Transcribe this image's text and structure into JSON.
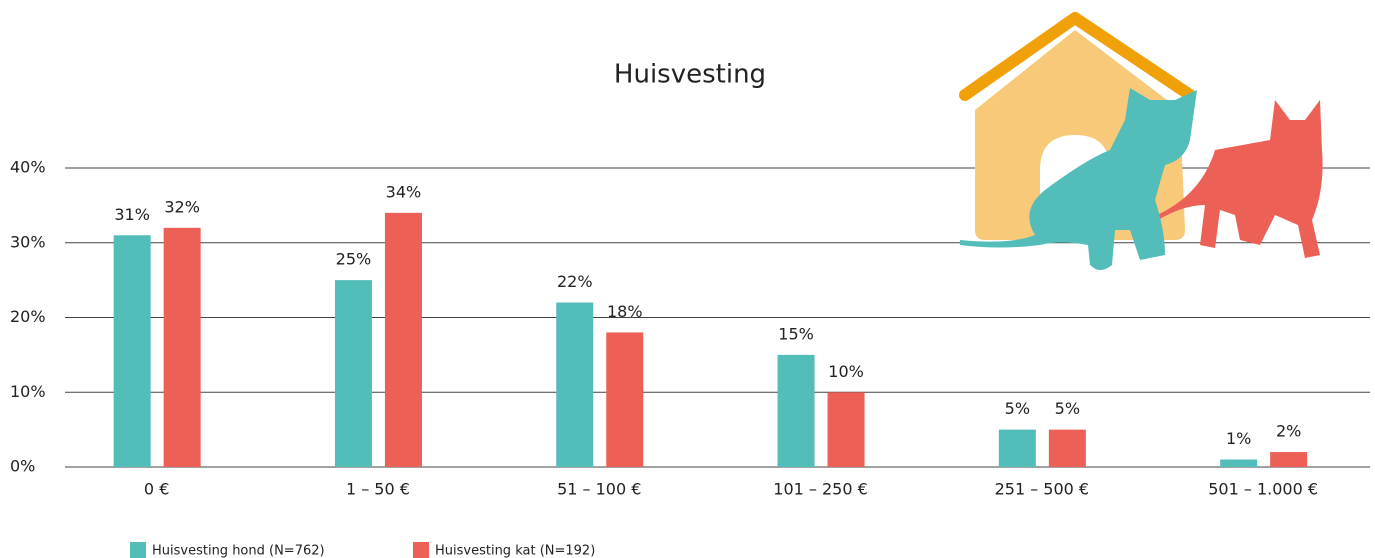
{
  "chart_data": {
    "type": "bar",
    "title": "Huisvesting",
    "categories": [
      "0 €",
      "1 – 50 €",
      "51 – 100 €",
      "101 – 250 €",
      "251 – 500 €",
      "501 – 1.000 €"
    ],
    "series": [
      {
        "name": "Huisvesting hond (N=762)",
        "color": "#52bdb9",
        "values": [
          31,
          25,
          22,
          15,
          5,
          1
        ],
        "value_labels": [
          "31%",
          "25%",
          "22%",
          "15%",
          "5%",
          "1%"
        ]
      },
      {
        "name": "Huisvesting kat (N=192)",
        "color": "#ec6055",
        "values": [
          32,
          34,
          18,
          10,
          5,
          2
        ],
        "value_labels": [
          "32%",
          "34%",
          "18%",
          "10%",
          "5%",
          "2%"
        ]
      }
    ],
    "ylim": [
      0,
      40
    ],
    "yticks": [
      {
        "value": 0,
        "label": "0%"
      },
      {
        "value": 10,
        "label": "10%"
      },
      {
        "value": 20,
        "label": "20%"
      },
      {
        "value": 30,
        "label": "30%"
      },
      {
        "value": 40,
        "label": "40%"
      }
    ],
    "grid": true
  }
}
